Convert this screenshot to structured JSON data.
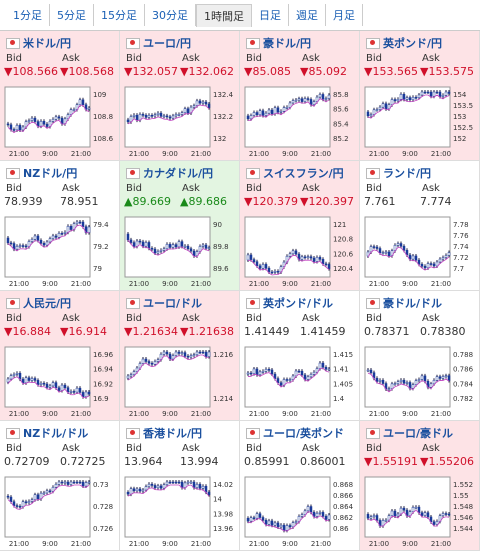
{
  "tabs": {
    "items": [
      "1分足",
      "5分足",
      "15分足",
      "30分足",
      "1時間足",
      "日足",
      "週足",
      "月足"
    ],
    "selected": 4
  },
  "labels": {
    "bid": "Bid",
    "ask": "Ask"
  },
  "panels": [
    {
      "title": "米ドル/円",
      "trend": "down",
      "bid": "▼108.566",
      "ask": "▼108.568",
      "yticks": [
        "109",
        "108.8",
        "108.6"
      ],
      "xticks": [
        "21:00",
        "9:00",
        "21:00"
      ]
    },
    {
      "title": "ユーロ/円",
      "trend": "down",
      "bid": "▼132.057",
      "ask": "▼132.062",
      "yticks": [
        "132.4",
        "132.2",
        "132"
      ],
      "xticks": [
        "21:00",
        "9:00",
        "21:00"
      ]
    },
    {
      "title": "豪ドル/円",
      "trend": "down",
      "bid": "▼85.085",
      "ask": "▼85.092",
      "yticks": [
        "85.8",
        "85.6",
        "85.4",
        "85.2"
      ],
      "xticks": [
        "21:00",
        "9:00",
        "21:00"
      ]
    },
    {
      "title": "英ポンド/円",
      "trend": "down",
      "bid": "▼153.565",
      "ask": "▼153.575",
      "yticks": [
        "154",
        "153.5",
        "153",
        "152.5",
        "152"
      ],
      "xticks": [
        "21:00",
        "9:00",
        "21:00"
      ]
    },
    {
      "title": "NZドル/円",
      "trend": "flat",
      "bid": "78.939",
      "ask": "78.951",
      "yticks": [
        "79.4",
        "79.2",
        "79"
      ],
      "xticks": [
        "21:00",
        "9:00",
        "21:00"
      ]
    },
    {
      "title": "カナダドル/円",
      "trend": "up",
      "bid": "▲89.669",
      "ask": "▲89.686",
      "yticks": [
        "90",
        "89.8",
        "89.6"
      ],
      "xticks": [
        "21:00",
        "9:00",
        "21:00"
      ]
    },
    {
      "title": "スイスフラン/円",
      "trend": "down",
      "bid": "▼120.379",
      "ask": "▼120.397",
      "yticks": [
        "121",
        "120.8",
        "120.6",
        "120.4"
      ],
      "xticks": [
        "21:00",
        "9:00",
        "21:00"
      ]
    },
    {
      "title": "ランド/円",
      "trend": "flat",
      "bid": "7.761",
      "ask": "7.774",
      "yticks": [
        "7.78",
        "7.76",
        "7.74",
        "7.72",
        "7.7"
      ],
      "xticks": [
        "21:00",
        "9:00",
        "21:00"
      ]
    },
    {
      "title": "人民元/円",
      "trend": "down",
      "bid": "▼16.884",
      "ask": "▼16.914",
      "yticks": [
        "16.96",
        "16.94",
        "16.92",
        "16.9"
      ],
      "xticks": [
        "21:00",
        "9:00",
        "21:00"
      ]
    },
    {
      "title": "ユーロ/ドル",
      "trend": "down",
      "bid": "▼1.21634",
      "ask": "▼1.21638",
      "yticks": [
        "1.216",
        "1.214"
      ],
      "xticks": [
        "21:00",
        "9:00",
        "21:00"
      ]
    },
    {
      "title": "英ポンド/ドル",
      "trend": "flat",
      "bid": "1.41449",
      "ask": "1.41459",
      "yticks": [
        "1.415",
        "1.41",
        "1.405",
        "1.4"
      ],
      "xticks": [
        "21:00",
        "9:00",
        "21:00"
      ]
    },
    {
      "title": "豪ドル/ドル",
      "trend": "flat",
      "bid": "0.78371",
      "ask": "0.78380",
      "yticks": [
        "0.788",
        "0.786",
        "0.784",
        "0.782"
      ],
      "xticks": [
        "21:00",
        "9:00",
        "21:00"
      ]
    },
    {
      "title": "NZドル/ドル",
      "trend": "flat",
      "bid": "0.72709",
      "ask": "0.72725",
      "yticks": [
        "0.73",
        "0.728",
        "0.726"
      ],
      "xticks": [
        "21:00",
        "9:00",
        "21:00"
      ]
    },
    {
      "title": "香港ドル/円",
      "trend": "flat",
      "bid": "13.964",
      "ask": "13.994",
      "yticks": [
        "14.02",
        "14",
        "13.98",
        "13.96"
      ],
      "xticks": [
        "21:00",
        "9:00",
        "21:00"
      ]
    },
    {
      "title": "ユーロ/英ポンド",
      "trend": "flat",
      "bid": "0.85991",
      "ask": "0.86001",
      "yticks": [
        "0.868",
        "0.866",
        "0.864",
        "0.862",
        "0.86"
      ],
      "xticks": [
        "21:00",
        "9:00",
        "21:00"
      ]
    },
    {
      "title": "ユーロ/豪ドル",
      "trend": "down",
      "bid": "▼1.55191",
      "ask": "▼1.55206",
      "yticks": [
        "1.552",
        "1.55",
        "1.548",
        "1.546",
        "1.544"
      ],
      "xticks": [
        "21:00",
        "9:00",
        "21:00"
      ]
    }
  ]
}
